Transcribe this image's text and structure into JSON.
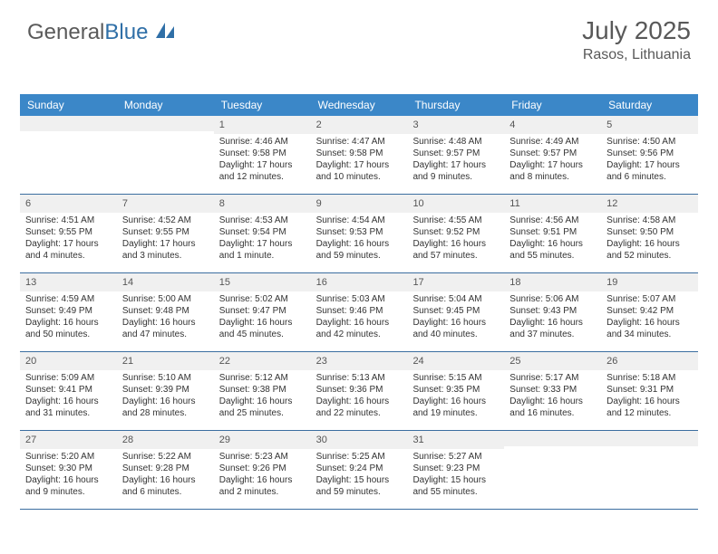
{
  "logo": {
    "text1": "General",
    "text2": "Blue"
  },
  "header": {
    "title": "July 2025",
    "location": "Rasos, Lithuania"
  },
  "colors": {
    "header_bar": "#3b87c8",
    "week_border": "#3b6ea0",
    "daynum_bg": "#f0f0f0",
    "logo_gray": "#5a5a5a",
    "logo_blue": "#2f6fa7",
    "title_color": "#595959"
  },
  "weekdays": [
    "Sunday",
    "Monday",
    "Tuesday",
    "Wednesday",
    "Thursday",
    "Friday",
    "Saturday"
  ],
  "weeks": [
    [
      {
        "n": "",
        "sr": "",
        "ss": "",
        "dl": ""
      },
      {
        "n": "",
        "sr": "",
        "ss": "",
        "dl": ""
      },
      {
        "n": "1",
        "sr": "Sunrise: 4:46 AM",
        "ss": "Sunset: 9:58 PM",
        "dl": "Daylight: 17 hours and 12 minutes."
      },
      {
        "n": "2",
        "sr": "Sunrise: 4:47 AM",
        "ss": "Sunset: 9:58 PM",
        "dl": "Daylight: 17 hours and 10 minutes."
      },
      {
        "n": "3",
        "sr": "Sunrise: 4:48 AM",
        "ss": "Sunset: 9:57 PM",
        "dl": "Daylight: 17 hours and 9 minutes."
      },
      {
        "n": "4",
        "sr": "Sunrise: 4:49 AM",
        "ss": "Sunset: 9:57 PM",
        "dl": "Daylight: 17 hours and 8 minutes."
      },
      {
        "n": "5",
        "sr": "Sunrise: 4:50 AM",
        "ss": "Sunset: 9:56 PM",
        "dl": "Daylight: 17 hours and 6 minutes."
      }
    ],
    [
      {
        "n": "6",
        "sr": "Sunrise: 4:51 AM",
        "ss": "Sunset: 9:55 PM",
        "dl": "Daylight: 17 hours and 4 minutes."
      },
      {
        "n": "7",
        "sr": "Sunrise: 4:52 AM",
        "ss": "Sunset: 9:55 PM",
        "dl": "Daylight: 17 hours and 3 minutes."
      },
      {
        "n": "8",
        "sr": "Sunrise: 4:53 AM",
        "ss": "Sunset: 9:54 PM",
        "dl": "Daylight: 17 hours and 1 minute."
      },
      {
        "n": "9",
        "sr": "Sunrise: 4:54 AM",
        "ss": "Sunset: 9:53 PM",
        "dl": "Daylight: 16 hours and 59 minutes."
      },
      {
        "n": "10",
        "sr": "Sunrise: 4:55 AM",
        "ss": "Sunset: 9:52 PM",
        "dl": "Daylight: 16 hours and 57 minutes."
      },
      {
        "n": "11",
        "sr": "Sunrise: 4:56 AM",
        "ss": "Sunset: 9:51 PM",
        "dl": "Daylight: 16 hours and 55 minutes."
      },
      {
        "n": "12",
        "sr": "Sunrise: 4:58 AM",
        "ss": "Sunset: 9:50 PM",
        "dl": "Daylight: 16 hours and 52 minutes."
      }
    ],
    [
      {
        "n": "13",
        "sr": "Sunrise: 4:59 AM",
        "ss": "Sunset: 9:49 PM",
        "dl": "Daylight: 16 hours and 50 minutes."
      },
      {
        "n": "14",
        "sr": "Sunrise: 5:00 AM",
        "ss": "Sunset: 9:48 PM",
        "dl": "Daylight: 16 hours and 47 minutes."
      },
      {
        "n": "15",
        "sr": "Sunrise: 5:02 AM",
        "ss": "Sunset: 9:47 PM",
        "dl": "Daylight: 16 hours and 45 minutes."
      },
      {
        "n": "16",
        "sr": "Sunrise: 5:03 AM",
        "ss": "Sunset: 9:46 PM",
        "dl": "Daylight: 16 hours and 42 minutes."
      },
      {
        "n": "17",
        "sr": "Sunrise: 5:04 AM",
        "ss": "Sunset: 9:45 PM",
        "dl": "Daylight: 16 hours and 40 minutes."
      },
      {
        "n": "18",
        "sr": "Sunrise: 5:06 AM",
        "ss": "Sunset: 9:43 PM",
        "dl": "Daylight: 16 hours and 37 minutes."
      },
      {
        "n": "19",
        "sr": "Sunrise: 5:07 AM",
        "ss": "Sunset: 9:42 PM",
        "dl": "Daylight: 16 hours and 34 minutes."
      }
    ],
    [
      {
        "n": "20",
        "sr": "Sunrise: 5:09 AM",
        "ss": "Sunset: 9:41 PM",
        "dl": "Daylight: 16 hours and 31 minutes."
      },
      {
        "n": "21",
        "sr": "Sunrise: 5:10 AM",
        "ss": "Sunset: 9:39 PM",
        "dl": "Daylight: 16 hours and 28 minutes."
      },
      {
        "n": "22",
        "sr": "Sunrise: 5:12 AM",
        "ss": "Sunset: 9:38 PM",
        "dl": "Daylight: 16 hours and 25 minutes."
      },
      {
        "n": "23",
        "sr": "Sunrise: 5:13 AM",
        "ss": "Sunset: 9:36 PM",
        "dl": "Daylight: 16 hours and 22 minutes."
      },
      {
        "n": "24",
        "sr": "Sunrise: 5:15 AM",
        "ss": "Sunset: 9:35 PM",
        "dl": "Daylight: 16 hours and 19 minutes."
      },
      {
        "n": "25",
        "sr": "Sunrise: 5:17 AM",
        "ss": "Sunset: 9:33 PM",
        "dl": "Daylight: 16 hours and 16 minutes."
      },
      {
        "n": "26",
        "sr": "Sunrise: 5:18 AM",
        "ss": "Sunset: 9:31 PM",
        "dl": "Daylight: 16 hours and 12 minutes."
      }
    ],
    [
      {
        "n": "27",
        "sr": "Sunrise: 5:20 AM",
        "ss": "Sunset: 9:30 PM",
        "dl": "Daylight: 16 hours and 9 minutes."
      },
      {
        "n": "28",
        "sr": "Sunrise: 5:22 AM",
        "ss": "Sunset: 9:28 PM",
        "dl": "Daylight: 16 hours and 6 minutes."
      },
      {
        "n": "29",
        "sr": "Sunrise: 5:23 AM",
        "ss": "Sunset: 9:26 PM",
        "dl": "Daylight: 16 hours and 2 minutes."
      },
      {
        "n": "30",
        "sr": "Sunrise: 5:25 AM",
        "ss": "Sunset: 9:24 PM",
        "dl": "Daylight: 15 hours and 59 minutes."
      },
      {
        "n": "31",
        "sr": "Sunrise: 5:27 AM",
        "ss": "Sunset: 9:23 PM",
        "dl": "Daylight: 15 hours and 55 minutes."
      },
      {
        "n": "",
        "sr": "",
        "ss": "",
        "dl": ""
      },
      {
        "n": "",
        "sr": "",
        "ss": "",
        "dl": ""
      }
    ]
  ]
}
